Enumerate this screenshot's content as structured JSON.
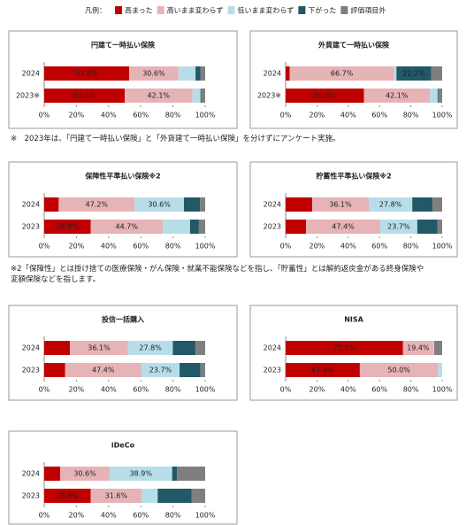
{
  "legend": {
    "title": "凡例：",
    "series": [
      {
        "name": "高まった",
        "color": "#c00000"
      },
      {
        "name": "高いまま変わらず",
        "color": "#e6b3b6"
      },
      {
        "name": "低いまま変わらず",
        "color": "#b7dee8"
      },
      {
        "name": "下がった",
        "color": "#215967"
      },
      {
        "name": "評価項目外",
        "color": "#7f7f7f"
      }
    ]
  },
  "notes": [
    "※　2023年は、「円建て一時払い保険」と「外貨建て一時払い保険」を分けずにアンケート実施。",
    "※2「保障性」とは掛け捨ての医療保険・がん保険・就業不能保険などを指し、「貯蓄性」とは解約返戻金がある終身保険や変額保険などを指します。"
  ],
  "chart_data": [
    {
      "type": "bar",
      "title": "円建て一時払い保険",
      "categories": [
        "2024",
        "2023※"
      ],
      "series": [
        {
          "values": [
            52.8,
            50.0
          ],
          "value_labels": [
            "52.8%",
            "50.0%"
          ]
        },
        {
          "values": [
            30.6,
            42.1
          ],
          "value_labels": [
            "30.6%",
            "42.1%"
          ]
        },
        {
          "values": [
            10.6,
            5.0
          ],
          "value_labels": [
            null,
            null
          ]
        },
        {
          "values": [
            3.0,
            0.5
          ],
          "value_labels": [
            null,
            null
          ]
        },
        {
          "values": [
            3.0,
            2.4
          ],
          "value_labels": [
            null,
            null
          ]
        }
      ],
      "xlim": [
        0,
        100
      ],
      "xticks": [
        {
          "value": 0,
          "label": "0%"
        },
        {
          "value": 20,
          "label": "20%"
        },
        {
          "value": 40,
          "label": "40%"
        },
        {
          "value": 60,
          "label": "60%"
        },
        {
          "value": 80,
          "label": "80%"
        },
        {
          "value": 100,
          "label": "100%"
        }
      ]
    },
    {
      "type": "bar",
      "title": "外貨建て一時払い保険",
      "categories": [
        "2024",
        "2023※"
      ],
      "series": [
        {
          "values": [
            2.6,
            50.0
          ],
          "value_labels": [
            null,
            "50.0%"
          ]
        },
        {
          "values": [
            66.7,
            42.1
          ],
          "value_labels": [
            "66.7%",
            "42.1%"
          ]
        },
        {
          "values": [
            1.5,
            5.0
          ],
          "value_labels": [
            null,
            null
          ]
        },
        {
          "values": [
            22.2,
            0.5
          ],
          "value_labels": [
            "22.2%",
            null
          ]
        },
        {
          "values": [
            7.0,
            2.4
          ],
          "value_labels": [
            null,
            null
          ]
        }
      ],
      "xlim": [
        0,
        100
      ],
      "xticks": [
        {
          "value": 0,
          "label": "0%"
        },
        {
          "value": 20,
          "label": "20%"
        },
        {
          "value": 40,
          "label": "40%"
        },
        {
          "value": 60,
          "label": "60%"
        },
        {
          "value": 80,
          "label": "80%"
        },
        {
          "value": 100,
          "label": "100%"
        }
      ]
    },
    {
      "type": "bar",
      "title": "保障性平準払い保険※2",
      "categories": [
        "2024",
        "2023"
      ],
      "series": [
        {
          "values": [
            9.0,
            28.9
          ],
          "value_labels": [
            null,
            "28.9%"
          ]
        },
        {
          "values": [
            47.2,
            44.7
          ],
          "value_labels": [
            "47.2%",
            "44.7%"
          ]
        },
        {
          "values": [
            30.6,
            17.0
          ],
          "value_labels": [
            "30.6%",
            null
          ]
        },
        {
          "values": [
            10.0,
            5.5
          ],
          "value_labels": [
            null,
            null
          ]
        },
        {
          "values": [
            3.2,
            3.9
          ],
          "value_labels": [
            null,
            null
          ]
        }
      ],
      "xlim": [
        0,
        100
      ],
      "xticks": [
        {
          "value": 0,
          "label": "0%"
        },
        {
          "value": 20,
          "label": "20%"
        },
        {
          "value": 40,
          "label": "40%"
        },
        {
          "value": 60,
          "label": "60%"
        },
        {
          "value": 80,
          "label": "80%"
        },
        {
          "value": 100,
          "label": "100%"
        }
      ]
    },
    {
      "type": "bar",
      "title": "貯蓄性平準払い保険※2",
      "categories": [
        "2024",
        "2023"
      ],
      "series": [
        {
          "values": [
            17.0,
            13.0
          ],
          "value_labels": [
            null,
            null
          ]
        },
        {
          "values": [
            36.1,
            47.4
          ],
          "value_labels": [
            "36.1%",
            "47.4%"
          ]
        },
        {
          "values": [
            27.8,
            23.7
          ],
          "value_labels": [
            "27.8%",
            "23.7%"
          ]
        },
        {
          "values": [
            13.0,
            13.0
          ],
          "value_labels": [
            null,
            null
          ]
        },
        {
          "values": [
            6.1,
            2.9
          ],
          "value_labels": [
            null,
            null
          ]
        }
      ],
      "xlim": [
        0,
        100
      ],
      "xticks": [
        {
          "value": 0,
          "label": "0%"
        },
        {
          "value": 20,
          "label": "20%"
        },
        {
          "value": 40,
          "label": "40%"
        },
        {
          "value": 60,
          "label": "60%"
        },
        {
          "value": 80,
          "label": "80%"
        },
        {
          "value": 100,
          "label": "100%"
        }
      ]
    },
    {
      "type": "bar",
      "title": "投信一括購入",
      "categories": [
        "2024",
        "2023"
      ],
      "series": [
        {
          "values": [
            16.0,
            13.0
          ],
          "value_labels": [
            null,
            null
          ]
        },
        {
          "values": [
            36.1,
            47.4
          ],
          "value_labels": [
            "36.1%",
            "47.4%"
          ]
        },
        {
          "values": [
            27.8,
            23.7
          ],
          "value_labels": [
            "27.8%",
            "23.7%"
          ]
        },
        {
          "values": [
            14.0,
            13.0
          ],
          "value_labels": [
            null,
            null
          ]
        },
        {
          "values": [
            6.1,
            2.9
          ],
          "value_labels": [
            null,
            null
          ]
        }
      ],
      "xlim": [
        0,
        100
      ],
      "xticks": [
        {
          "value": 0,
          "label": "0%"
        },
        {
          "value": 20,
          "label": "20%"
        },
        {
          "value": 40,
          "label": "40%"
        },
        {
          "value": 60,
          "label": "60%"
        },
        {
          "value": 80,
          "label": "80%"
        },
        {
          "value": 100,
          "label": "100%"
        }
      ]
    },
    {
      "type": "bar",
      "title": "NISA",
      "categories": [
        "2024",
        "2023"
      ],
      "series": [
        {
          "values": [
            75.0,
            47.4
          ],
          "value_labels": [
            "75.0%",
            "47.4%"
          ]
        },
        {
          "values": [
            19.4,
            50.0
          ],
          "value_labels": [
            "19.4%",
            "50.0%"
          ]
        },
        {
          "values": [
            0.5,
            2.6
          ],
          "value_labels": [
            null,
            null
          ]
        },
        {
          "values": [
            0,
            0
          ],
          "value_labels": [
            null,
            null
          ]
        },
        {
          "values": [
            5.1,
            0
          ],
          "value_labels": [
            null,
            null
          ]
        }
      ],
      "xlim": [
        0,
        100
      ],
      "xticks": [
        {
          "value": 0,
          "label": "0%"
        },
        {
          "value": 20,
          "label": "20%"
        },
        {
          "value": 40,
          "label": "40%"
        },
        {
          "value": 60,
          "label": "60%"
        },
        {
          "value": 80,
          "label": "80%"
        },
        {
          "value": 100,
          "label": "100%"
        }
      ]
    },
    {
      "type": "bar",
      "title": "iDeCo",
      "categories": [
        "2024",
        "2023"
      ],
      "series": [
        {
          "values": [
            10.0,
            28.9
          ],
          "value_labels": [
            null,
            "28.9%"
          ]
        },
        {
          "values": [
            30.6,
            31.6
          ],
          "value_labels": [
            "30.6%",
            "31.6%"
          ]
        },
        {
          "values": [
            38.9,
            10.0
          ],
          "value_labels": [
            "38.9%",
            null
          ]
        },
        {
          "values": [
            3.0,
            21.0
          ],
          "value_labels": [
            null,
            null
          ]
        },
        {
          "values": [
            17.5,
            8.5
          ],
          "value_labels": [
            null,
            null
          ]
        }
      ],
      "xlim": [
        0,
        100
      ],
      "xticks": [
        {
          "value": 0,
          "label": "0%"
        },
        {
          "value": 20,
          "label": "20%"
        },
        {
          "value": 40,
          "label": "40%"
        },
        {
          "value": 60,
          "label": "60%"
        },
        {
          "value": 80,
          "label": "80%"
        },
        {
          "value": 100,
          "label": "100%"
        }
      ]
    }
  ]
}
